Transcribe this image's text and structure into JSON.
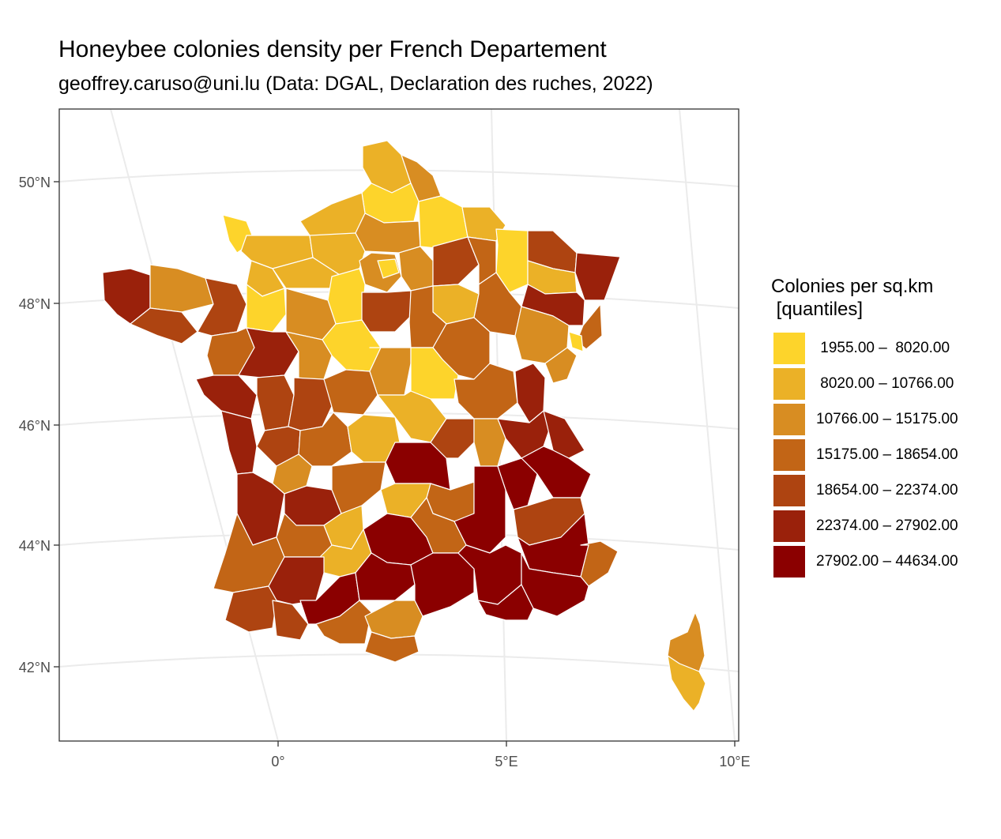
{
  "title": "Honeybee colonies density per French Departement",
  "subtitle": "geoffrey.caruso@uni.lu  (Data: DGAL, Declaration des ruches, 2022)",
  "axes": {
    "lat_ticks": [
      "50°N",
      "48°N",
      "46°N",
      "44°N",
      "42°N"
    ],
    "lon_ticks": [
      "0°",
      "5°E",
      "10°E"
    ]
  },
  "legend": {
    "title": "Colonies per sq.km\n [quantiles]",
    "classes": [
      {
        "label": " 1955.00 –  8020.00",
        "color": "#FDD42B"
      },
      {
        "label": " 8020.00 – 10766.00",
        "color": "#EBB127"
      },
      {
        "label": "10766.00 – 15175.00",
        "color": "#D88D22"
      },
      {
        "label": "15175.00 – 18654.00",
        "color": "#C26516"
      },
      {
        "label": "18654.00 – 22374.00",
        "color": "#AE4411"
      },
      {
        "label": "22374.00 – 27902.00",
        "color": "#9A210B"
      },
      {
        "label": "27902.00 – 44634.00",
        "color": "#8B0000"
      }
    ]
  },
  "colors": {
    "panel_border": "#333333",
    "graticule": "#ebebeb",
    "department_border": "#ffffff"
  }
}
